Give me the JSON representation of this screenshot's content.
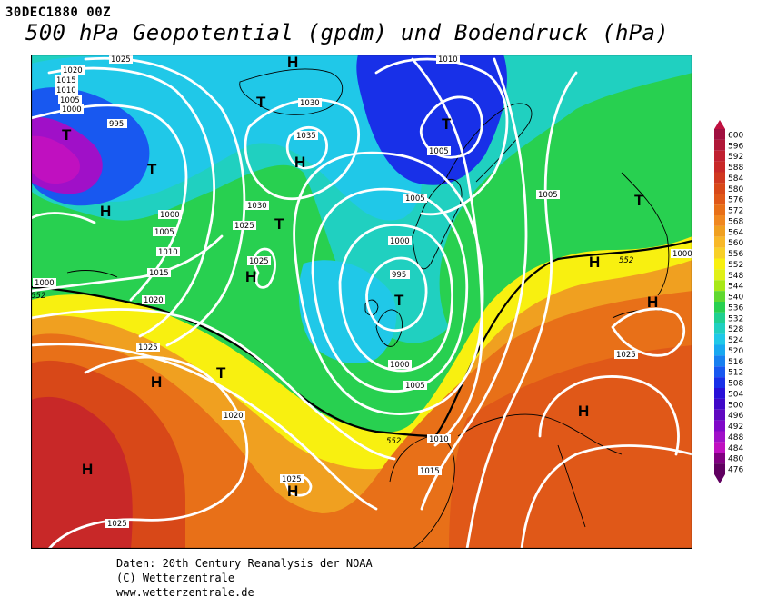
{
  "header": {
    "datetime": "30DEC1880 00Z",
    "title": "500 hPa Geopotential (gpdm) und Bodendruck (hPa)"
  },
  "footer": {
    "line1": "Daten: 20th Century Reanalysis der NOAA",
    "line2": "(C) Wetterzentrale",
    "line3": "www.wetterzentrale.de"
  },
  "colorbar": {
    "levels": [
      "600",
      "596",
      "592",
      "588",
      "584",
      "580",
      "576",
      "572",
      "568",
      "564",
      "560",
      "556",
      "552",
      "548",
      "544",
      "540",
      "536",
      "532",
      "528",
      "524",
      "520",
      "516",
      "512",
      "508",
      "504",
      "500",
      "496",
      "492",
      "488",
      "484",
      "480",
      "476"
    ],
    "colors": [
      "#a01040",
      "#b01838",
      "#c02030",
      "#c82828",
      "#d03820",
      "#d84818",
      "#e05818",
      "#e87018",
      "#f08820",
      "#f0a020",
      "#f8b828",
      "#f8d028",
      "#f8f010",
      "#e0f018",
      "#a8e818",
      "#60d830",
      "#28d050",
      "#20d090",
      "#20d0c0",
      "#20c8e8",
      "#18a8f0",
      "#1880f0",
      "#1858f0",
      "#1830e8",
      "#2810d8",
      "#4008c8",
      "#6008c0",
      "#8008c8",
      "#a010c8",
      "#c010c0",
      "#800080",
      "#600060"
    ],
    "arrow_top_color": "#c01040",
    "arrow_bottom_color": "#600060"
  },
  "map": {
    "pressure_centers": [
      {
        "label": "H"
      },
      {
        "label": "T"
      },
      {
        "label": "T"
      },
      {
        "label": "H"
      },
      {
        "label": "T"
      },
      {
        "label": "T"
      },
      {
        "label": "H"
      },
      {
        "label": "T"
      },
      {
        "label": "H"
      },
      {
        "label": "T"
      },
      {
        "label": "H"
      },
      {
        "label": "H"
      },
      {
        "label": "H"
      },
      {
        "label": "T"
      },
      {
        "label": "H"
      },
      {
        "label": "H"
      },
      {
        "label": "H"
      },
      {
        "label": "T"
      },
      {
        "label": "H"
      },
      {
        "label": "H"
      }
    ],
    "isobar_labels": [
      "1025",
      "1010",
      "1020",
      "1015",
      "1010",
      "1005",
      "1000",
      "995",
      "1030",
      "1035",
      "1005",
      "1000",
      "1005",
      "1010",
      "1015",
      "1000",
      "1030",
      "1025",
      "1025",
      "1005",
      "1000",
      "995",
      "1000",
      "1005",
      "1010",
      "1015",
      "1025",
      "1020",
      "1025",
      "1025",
      "1020",
      "1025",
      "1000",
      "1005",
      "552",
      "552",
      "552"
    ]
  }
}
